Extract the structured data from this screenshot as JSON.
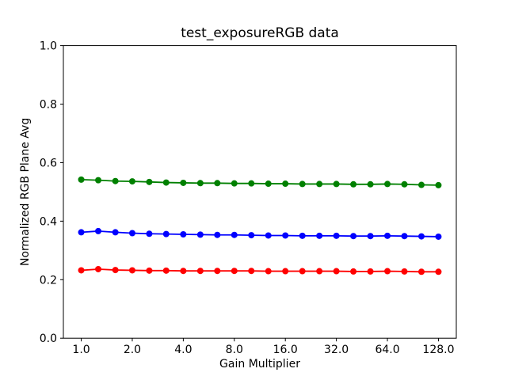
{
  "chart_data": {
    "type": "line",
    "title": "test_exposureRGB data",
    "xlabel": "Gain Multiplier",
    "ylabel": "Normalized RGB Plane Avg",
    "x_scale": "log2",
    "xlim_log2": [
      -0.35,
      7.35
    ],
    "ylim": [
      0.0,
      1.0
    ],
    "x_ticks": [
      1.0,
      2.0,
      4.0,
      8.0,
      16.0,
      32.0,
      64.0,
      128.0
    ],
    "x_tick_labels": [
      "1.0",
      "2.0",
      "4.0",
      "8.0",
      "16.0",
      "32.0",
      "64.0",
      "128.0"
    ],
    "y_ticks": [
      0.0,
      0.2,
      0.4,
      0.6,
      0.8,
      1.0
    ],
    "y_tick_labels": [
      "0.0",
      "0.2",
      "0.4",
      "0.6",
      "0.8",
      "1.0"
    ],
    "grid": false,
    "legend": "none",
    "x": [
      1.0,
      1.26,
      1.59,
      2.0,
      2.52,
      3.17,
      4.0,
      5.04,
      6.35,
      8.0,
      10.08,
      12.7,
      16.0,
      20.16,
      25.4,
      32.0,
      40.32,
      50.8,
      64.0,
      80.63,
      101.59,
      128.0
    ],
    "series": [
      {
        "name": "green",
        "color": "#008000",
        "values": [
          0.542,
          0.54,
          0.537,
          0.536,
          0.534,
          0.532,
          0.531,
          0.53,
          0.53,
          0.529,
          0.529,
          0.528,
          0.528,
          0.527,
          0.527,
          0.527,
          0.526,
          0.526,
          0.527,
          0.526,
          0.524,
          0.523
        ]
      },
      {
        "name": "blue",
        "color": "#0000ff",
        "values": [
          0.362,
          0.366,
          0.362,
          0.359,
          0.357,
          0.356,
          0.355,
          0.354,
          0.353,
          0.353,
          0.352,
          0.351,
          0.351,
          0.35,
          0.35,
          0.35,
          0.349,
          0.349,
          0.35,
          0.349,
          0.348,
          0.347
        ]
      },
      {
        "name": "red",
        "color": "#ff0000",
        "values": [
          0.232,
          0.236,
          0.233,
          0.232,
          0.231,
          0.231,
          0.23,
          0.23,
          0.23,
          0.23,
          0.23,
          0.229,
          0.229,
          0.229,
          0.229,
          0.229,
          0.228,
          0.228,
          0.229,
          0.228,
          0.227,
          0.227
        ]
      }
    ]
  }
}
